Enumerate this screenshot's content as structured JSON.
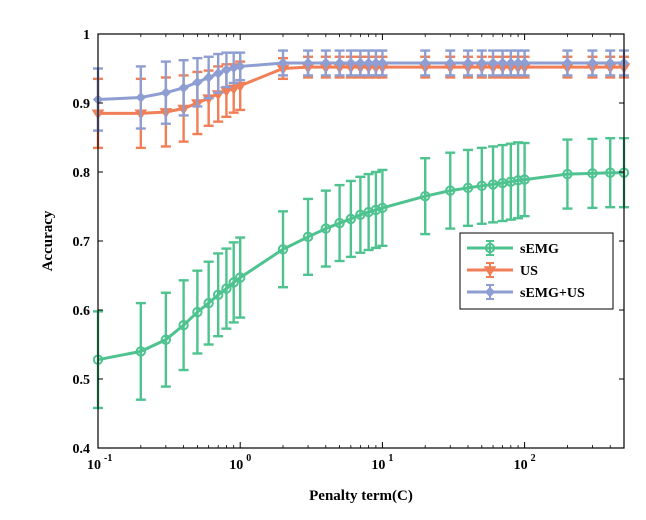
{
  "chart_data": {
    "type": "line",
    "xscale": "log",
    "xlabel": "Penalty term(C)",
    "ylabel": "Accuracy",
    "xlim": [
      0.1,
      500
    ],
    "ylim": [
      0.4,
      1.0
    ],
    "grid": false,
    "legend_position": "center-right",
    "x_ticks": [
      {
        "value": 0.1,
        "base": "10",
        "exp": "-1"
      },
      {
        "value": 1,
        "base": "10",
        "exp": "0"
      },
      {
        "value": 10,
        "base": "10",
        "exp": "1"
      },
      {
        "value": 100,
        "base": "10",
        "exp": "2"
      }
    ],
    "y_ticks": [
      {
        "value": 0.4,
        "label": "0.4"
      },
      {
        "value": 0.5,
        "label": "0.5"
      },
      {
        "value": 0.6,
        "label": "0.6"
      },
      {
        "value": 0.7,
        "label": "0.7"
      },
      {
        "value": 0.8,
        "label": "0.8"
      },
      {
        "value": 0.9,
        "label": "0.9"
      },
      {
        "value": 1.0,
        "label": "1"
      }
    ],
    "x": [
      0.1,
      0.2,
      0.3,
      0.4,
      0.5,
      0.6,
      0.7,
      0.8,
      0.9,
      1,
      2,
      3,
      4,
      5,
      6,
      7,
      8,
      9,
      10,
      20,
      30,
      40,
      50,
      60,
      70,
      80,
      90,
      100,
      200,
      300,
      400,
      500
    ],
    "series": [
      {
        "name": "sEMG",
        "color": "#4fc38f",
        "marker": "circle",
        "values": [
          0.528,
          0.54,
          0.557,
          0.578,
          0.597,
          0.61,
          0.622,
          0.631,
          0.64,
          0.647,
          0.688,
          0.706,
          0.718,
          0.726,
          0.732,
          0.738,
          0.742,
          0.745,
          0.748,
          0.765,
          0.773,
          0.777,
          0.78,
          0.782,
          0.784,
          0.786,
          0.788,
          0.789,
          0.797,
          0.798,
          0.799,
          0.799
        ],
        "errors": [
          0.07,
          0.07,
          0.068,
          0.065,
          0.06,
          0.06,
          0.06,
          0.058,
          0.058,
          0.058,
          0.055,
          0.055,
          0.055,
          0.055,
          0.055,
          0.055,
          0.055,
          0.055,
          0.055,
          0.055,
          0.055,
          0.055,
          0.055,
          0.055,
          0.055,
          0.055,
          0.055,
          0.053,
          0.05,
          0.05,
          0.05,
          0.05
        ]
      },
      {
        "name": "US",
        "color": "#f07e57",
        "marker": "triangle-down",
        "values": [
          0.885,
          0.885,
          0.887,
          0.892,
          0.9,
          0.907,
          0.913,
          0.918,
          0.921,
          0.925,
          0.95,
          0.952,
          0.952,
          0.952,
          0.952,
          0.952,
          0.952,
          0.952,
          0.952,
          0.952,
          0.952,
          0.952,
          0.952,
          0.952,
          0.952,
          0.952,
          0.952,
          0.952,
          0.952,
          0.952,
          0.952,
          0.952
        ],
        "errors": [
          0.05,
          0.05,
          0.05,
          0.048,
          0.045,
          0.04,
          0.04,
          0.038,
          0.035,
          0.035,
          0.015,
          0.015,
          0.015,
          0.015,
          0.015,
          0.015,
          0.015,
          0.015,
          0.015,
          0.015,
          0.015,
          0.015,
          0.015,
          0.015,
          0.015,
          0.015,
          0.015,
          0.015,
          0.015,
          0.015,
          0.015,
          0.015
        ]
      },
      {
        "name": "sEMG+US",
        "color": "#8e9ed2",
        "marker": "diamond",
        "values": [
          0.905,
          0.908,
          0.915,
          0.922,
          0.93,
          0.937,
          0.943,
          0.948,
          0.951,
          0.953,
          0.958,
          0.958,
          0.958,
          0.958,
          0.958,
          0.958,
          0.958,
          0.958,
          0.958,
          0.958,
          0.958,
          0.958,
          0.958,
          0.958,
          0.958,
          0.958,
          0.958,
          0.958,
          0.958,
          0.958,
          0.958,
          0.958
        ],
        "errors": [
          0.045,
          0.045,
          0.045,
          0.04,
          0.035,
          0.03,
          0.028,
          0.025,
          0.022,
          0.02,
          0.018,
          0.018,
          0.018,
          0.018,
          0.018,
          0.018,
          0.018,
          0.018,
          0.018,
          0.018,
          0.018,
          0.018,
          0.018,
          0.018,
          0.018,
          0.018,
          0.018,
          0.018,
          0.018,
          0.018,
          0.018,
          0.018
        ]
      }
    ]
  }
}
